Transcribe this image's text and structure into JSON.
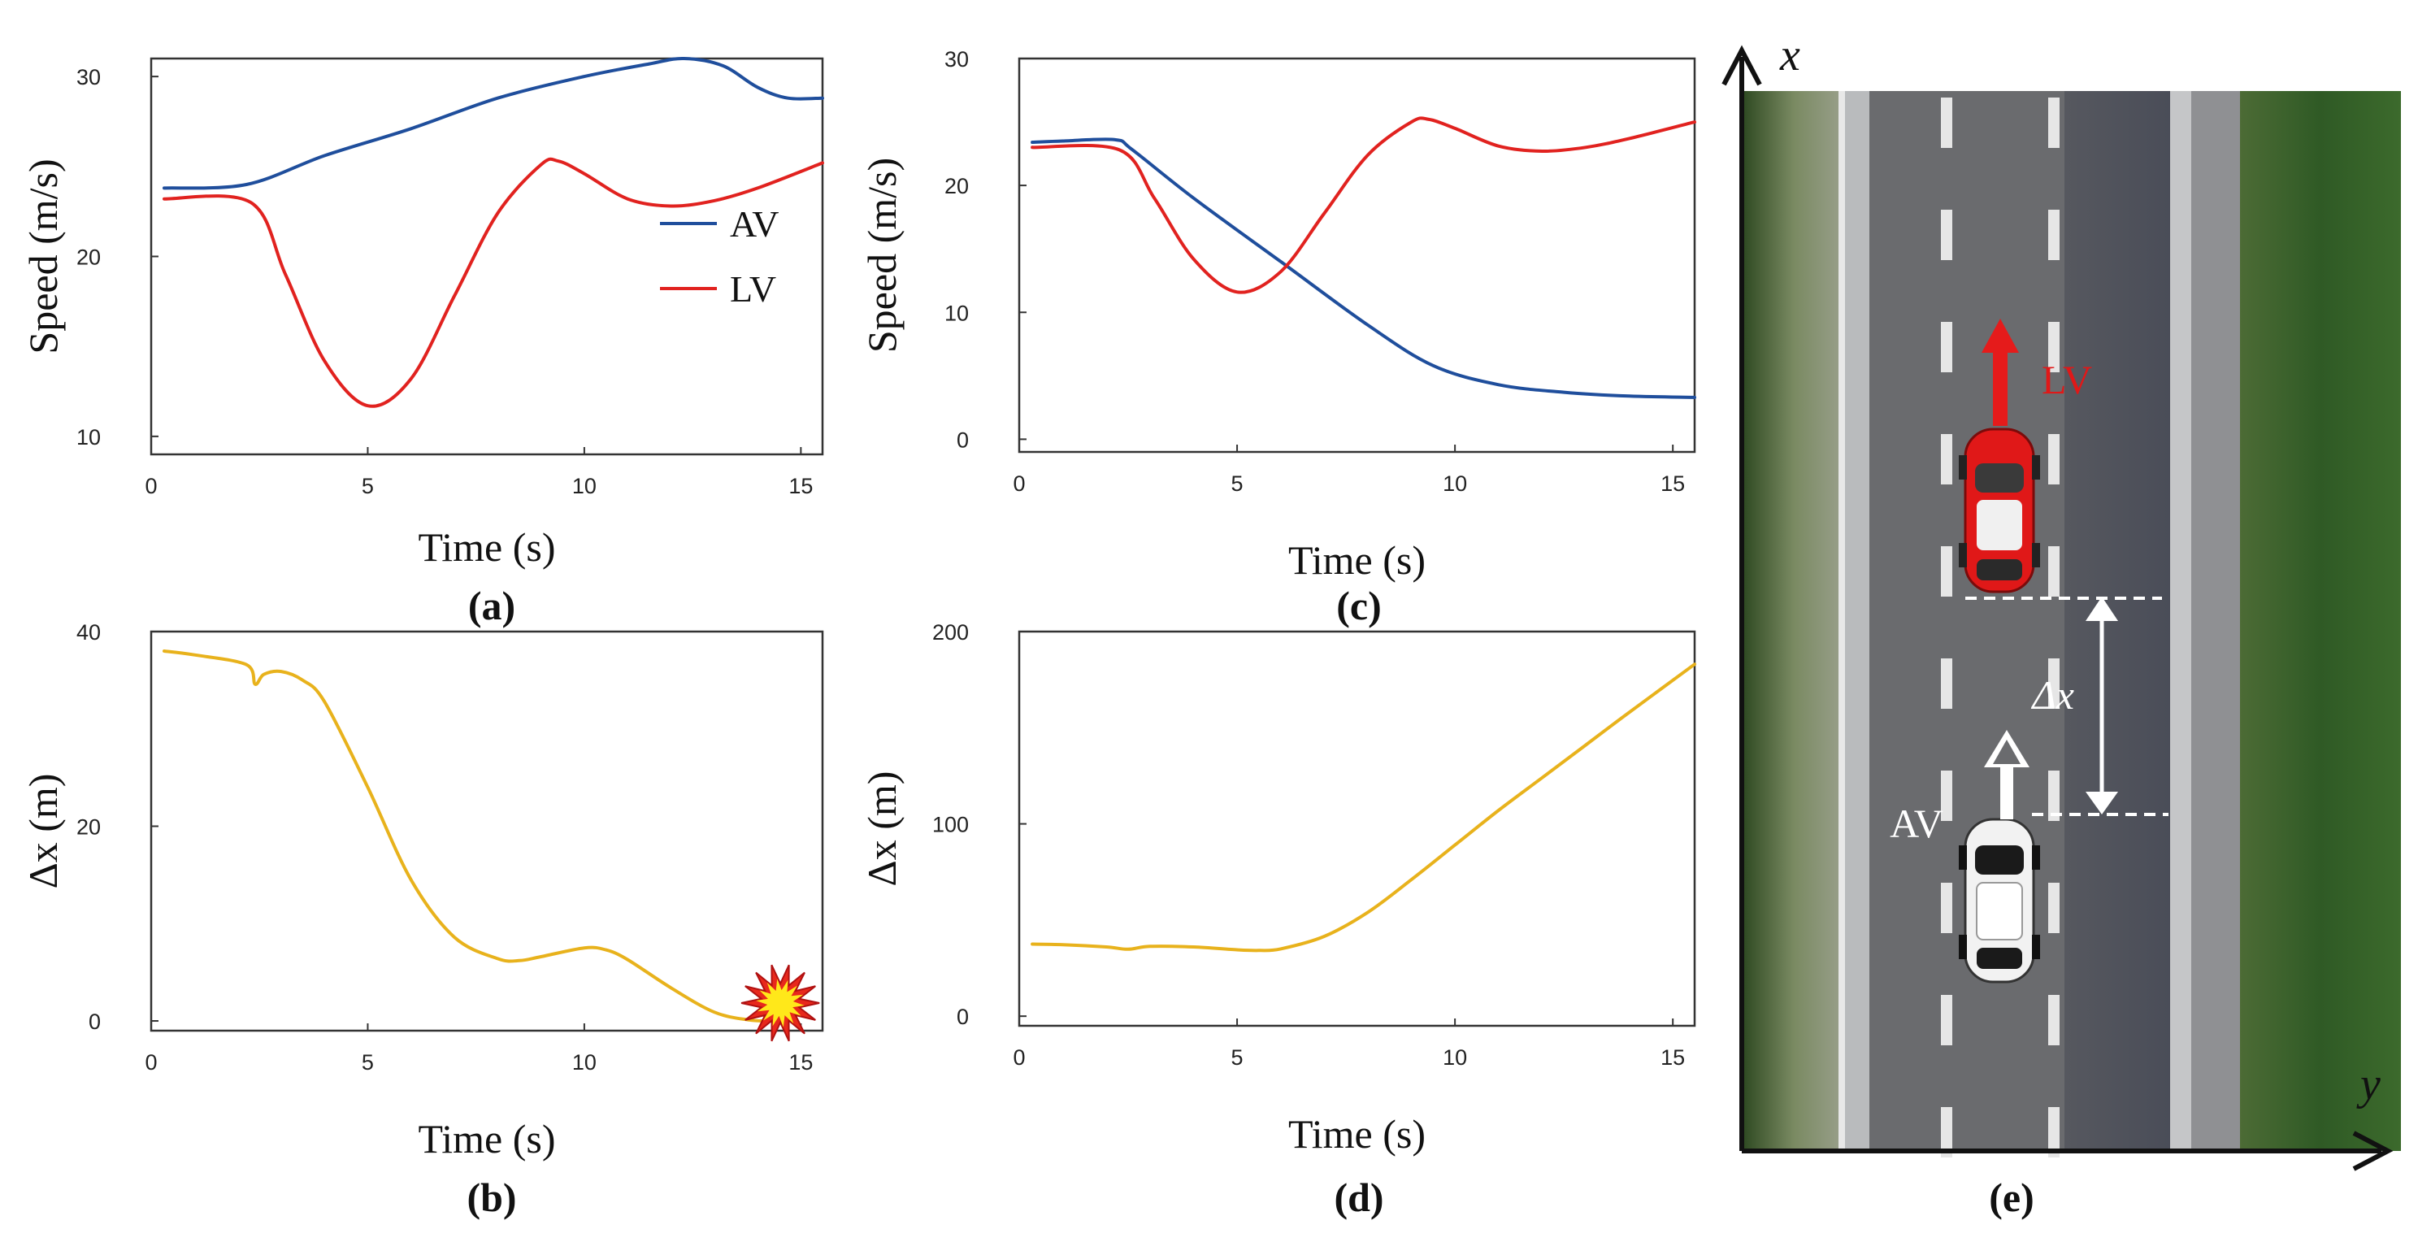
{
  "figure": {
    "panel_labels": [
      "(a)",
      "(b)",
      "(c)",
      "(d)",
      "(e)"
    ],
    "scene": {
      "x_axis_label": "x",
      "y_axis_label": "y",
      "lv_label": "LV",
      "av_label": "AV",
      "gap_label": "Δx",
      "colors": {
        "road": "#5f6063",
        "grass": "#3f5d2e",
        "lv_car": "#e01818",
        "av_car": "#f2f2f2",
        "lv_arrow": "#e51b1b"
      }
    }
  },
  "chart_data": [
    {
      "id": "a",
      "type": "line",
      "title": "",
      "xlabel": "Time (s)",
      "ylabel": "Speed (m/s)",
      "xlim": [
        0,
        15.5
      ],
      "ylim": [
        9,
        31
      ],
      "xticks": [
        0,
        5,
        10,
        15
      ],
      "yticks": [
        10,
        20,
        30
      ],
      "legend": "inside-right",
      "series": [
        {
          "name": "AV",
          "color": "#1f4e9c",
          "x": [
            0.3,
            2.2,
            4,
            6,
            8,
            10,
            11.5,
            12.3,
            13.2,
            14,
            14.7,
            15.5
          ],
          "y": [
            23.8,
            24.0,
            25.6,
            27.1,
            28.8,
            30.0,
            30.7,
            31.0,
            30.6,
            29.4,
            28.8,
            28.8
          ]
        },
        {
          "name": "LV",
          "color": "#e1221f",
          "x": [
            0.3,
            2.3,
            3.1,
            4,
            5,
            6,
            7,
            8,
            9,
            9.4,
            10,
            11,
            12,
            13,
            14,
            15.5
          ],
          "y": [
            23.2,
            23.0,
            19.0,
            14.2,
            11.7,
            13.2,
            17.8,
            22.4,
            25.1,
            25.3,
            24.6,
            23.2,
            22.8,
            23.1,
            23.8,
            25.2
          ]
        }
      ]
    },
    {
      "id": "b",
      "type": "line",
      "title": "",
      "xlabel": "Time (s)",
      "ylabel": "Δx (m)",
      "xlim": [
        0,
        15.5
      ],
      "ylim": [
        -1,
        40
      ],
      "xticks": [
        0,
        5,
        10,
        15
      ],
      "yticks": [
        0,
        20,
        40
      ],
      "series": [
        {
          "name": "Δx",
          "color": "#e8b21c",
          "x": [
            0.3,
            1,
            2.2,
            2.4,
            2.6,
            3,
            3.5,
            4,
            5,
            6,
            7,
            8,
            8.5,
            9,
            10,
            10.5,
            11,
            12,
            13,
            13.8,
            14.3
          ],
          "y": [
            38.0,
            37.6,
            36.6,
            34.6,
            35.6,
            35.9,
            35.0,
            32.8,
            24.0,
            14.5,
            8.6,
            6.4,
            6.2,
            6.6,
            7.5,
            7.3,
            6.3,
            3.4,
            0.9,
            0.1,
            0
          ]
        }
      ],
      "annotation": "collision marker at end"
    },
    {
      "id": "c",
      "type": "line",
      "title": "",
      "xlabel": "Time (s)",
      "ylabel": "Speed (m/s)",
      "xlim": [
        0,
        15.5
      ],
      "ylim": [
        -1,
        30
      ],
      "xticks": [
        0,
        5,
        10,
        15
      ],
      "yticks": [
        0,
        10,
        20,
        30
      ],
      "series": [
        {
          "name": "AV",
          "color": "#1f4e9c",
          "x": [
            0.3,
            1,
            2.2,
            2.6,
            4,
            6,
            8,
            9.5,
            11,
            12.5,
            14,
            15.5
          ],
          "y": [
            23.4,
            23.5,
            23.6,
            22.8,
            19.0,
            14.0,
            9.0,
            5.8,
            4.3,
            3.7,
            3.4,
            3.3
          ]
        },
        {
          "name": "LV",
          "color": "#e1221f",
          "x": [
            0.3,
            2.3,
            3.1,
            4,
            5,
            6,
            7,
            8,
            9,
            9.4,
            10,
            11,
            12,
            13,
            14,
            15.5
          ],
          "y": [
            23.0,
            22.8,
            19.0,
            14.2,
            11.6,
            13.2,
            17.8,
            22.4,
            25.0,
            25.2,
            24.5,
            23.1,
            22.7,
            23.0,
            23.7,
            25.0
          ]
        }
      ]
    },
    {
      "id": "d",
      "type": "line",
      "title": "",
      "xlabel": "Time (s)",
      "ylabel": "Δx (m)",
      "xlim": [
        0,
        15.5
      ],
      "ylim": [
        -5,
        200
      ],
      "xticks": [
        0,
        5,
        10,
        15
      ],
      "yticks": [
        0,
        100,
        200
      ],
      "series": [
        {
          "name": "Δx",
          "color": "#e8b21c",
          "x": [
            0.3,
            1,
            2,
            2.5,
            3,
            4,
            5,
            5.5,
            6,
            7,
            8,
            9,
            10,
            11,
            12,
            13,
            14,
            15.5
          ],
          "y": [
            37.5,
            37.2,
            36.0,
            34.8,
            36.3,
            36.0,
            34.5,
            34.2,
            35.0,
            41.5,
            54.0,
            71.0,
            89.0,
            107.0,
            124.0,
            141.0,
            158.0,
            183.0
          ]
        }
      ]
    }
  ]
}
